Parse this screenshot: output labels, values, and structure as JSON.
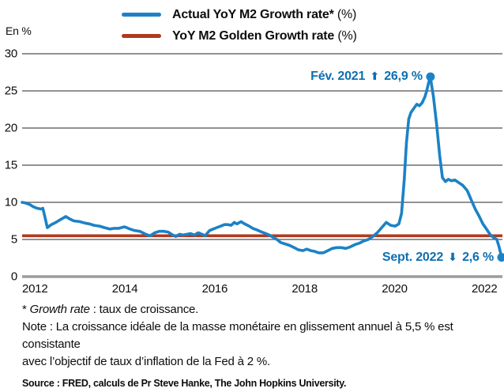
{
  "chart_data": {
    "type": "line",
    "unit_label": "En %",
    "xlim": [
      2012,
      2022.667
    ],
    "ylim": [
      0,
      30
    ],
    "x_ticks": [
      "2012",
      "2014",
      "2016",
      "2018",
      "2020",
      "2022"
    ],
    "x_tick_years": [
      2012,
      2014,
      2016,
      2018,
      2020,
      2022
    ],
    "y_ticks": [
      0,
      5,
      10,
      15,
      20,
      25,
      30
    ],
    "grid": "horizontal-only",
    "legend_position": "top-center",
    "colors": {
      "actual_line": "#1b82c6",
      "golden_line": "#b03a1e",
      "annotation_text": "#0e6fb2",
      "gridline": "#6e6e6e",
      "zero_line": "#9c9c9c"
    },
    "series": [
      {
        "name": "Actual YoY M2 Growth rate* (%)",
        "type": "line",
        "points": [
          [
            2012.0,
            10.0
          ],
          [
            2012.08,
            9.9
          ],
          [
            2012.17,
            9.7
          ],
          [
            2012.25,
            9.4
          ],
          [
            2012.33,
            9.2
          ],
          [
            2012.42,
            9.1
          ],
          [
            2012.46,
            9.2
          ],
          [
            2012.5,
            8.2
          ],
          [
            2012.56,
            6.6
          ],
          [
            2012.65,
            7.0
          ],
          [
            2012.75,
            7.3
          ],
          [
            2012.83,
            7.6
          ],
          [
            2012.92,
            7.9
          ],
          [
            2012.97,
            8.1
          ],
          [
            2013.05,
            7.8
          ],
          [
            2013.15,
            7.5
          ],
          [
            2013.28,
            7.4
          ],
          [
            2013.4,
            7.2
          ],
          [
            2013.5,
            7.1
          ],
          [
            2013.6,
            6.9
          ],
          [
            2013.72,
            6.8
          ],
          [
            2013.83,
            6.6
          ],
          [
            2013.95,
            6.4
          ],
          [
            2014.05,
            6.5
          ],
          [
            2014.15,
            6.5
          ],
          [
            2014.28,
            6.7
          ],
          [
            2014.4,
            6.4
          ],
          [
            2014.5,
            6.2
          ],
          [
            2014.62,
            6.1
          ],
          [
            2014.75,
            5.7
          ],
          [
            2014.85,
            5.5
          ],
          [
            2014.95,
            5.9
          ],
          [
            2015.05,
            6.1
          ],
          [
            2015.15,
            6.1
          ],
          [
            2015.25,
            6.0
          ],
          [
            2015.35,
            5.6
          ],
          [
            2015.42,
            5.4
          ],
          [
            2015.5,
            5.7
          ],
          [
            2015.58,
            5.6
          ],
          [
            2015.67,
            5.7
          ],
          [
            2015.75,
            5.8
          ],
          [
            2015.83,
            5.6
          ],
          [
            2015.92,
            5.9
          ],
          [
            2016.0,
            5.7
          ],
          [
            2016.07,
            5.5
          ],
          [
            2016.17,
            6.2
          ],
          [
            2016.25,
            6.4
          ],
          [
            2016.33,
            6.6
          ],
          [
            2016.42,
            6.8
          ],
          [
            2016.5,
            7.0
          ],
          [
            2016.58,
            7.0
          ],
          [
            2016.65,
            6.9
          ],
          [
            2016.72,
            7.3
          ],
          [
            2016.78,
            7.1
          ],
          [
            2016.87,
            7.4
          ],
          [
            2016.95,
            7.1
          ],
          [
            2017.05,
            6.8
          ],
          [
            2017.13,
            6.5
          ],
          [
            2017.22,
            6.3
          ],
          [
            2017.33,
            6.0
          ],
          [
            2017.42,
            5.8
          ],
          [
            2017.5,
            5.6
          ],
          [
            2017.58,
            5.3
          ],
          [
            2017.67,
            5.0
          ],
          [
            2017.75,
            4.6
          ],
          [
            2017.85,
            4.4
          ],
          [
            2017.95,
            4.2
          ],
          [
            2018.05,
            3.9
          ],
          [
            2018.15,
            3.6
          ],
          [
            2018.25,
            3.5
          ],
          [
            2018.33,
            3.7
          ],
          [
            2018.42,
            3.5
          ],
          [
            2018.5,
            3.4
          ],
          [
            2018.6,
            3.2
          ],
          [
            2018.7,
            3.2
          ],
          [
            2018.8,
            3.5
          ],
          [
            2018.9,
            3.8
          ],
          [
            2019.0,
            3.9
          ],
          [
            2019.1,
            3.9
          ],
          [
            2019.2,
            3.8
          ],
          [
            2019.3,
            4.0
          ],
          [
            2019.4,
            4.3
          ],
          [
            2019.5,
            4.5
          ],
          [
            2019.6,
            4.8
          ],
          [
            2019.7,
            5.0
          ],
          [
            2019.8,
            5.4
          ],
          [
            2019.9,
            5.9
          ],
          [
            2020.0,
            6.6
          ],
          [
            2020.1,
            7.3
          ],
          [
            2020.2,
            6.9
          ],
          [
            2020.3,
            6.8
          ],
          [
            2020.38,
            7.1
          ],
          [
            2020.44,
            8.5
          ],
          [
            2020.5,
            13.0
          ],
          [
            2020.55,
            18.0
          ],
          [
            2020.6,
            21.2
          ],
          [
            2020.65,
            22.1
          ],
          [
            2020.72,
            22.7
          ],
          [
            2020.78,
            23.2
          ],
          [
            2020.84,
            23.0
          ],
          [
            2020.9,
            23.4
          ],
          [
            2020.96,
            24.2
          ],
          [
            2021.0,
            25.0
          ],
          [
            2021.04,
            26.0
          ],
          [
            2021.08,
            26.9
          ],
          [
            2021.15,
            24.2
          ],
          [
            2021.22,
            20.5
          ],
          [
            2021.29,
            16.3
          ],
          [
            2021.35,
            13.3
          ],
          [
            2021.42,
            12.8
          ],
          [
            2021.48,
            13.1
          ],
          [
            2021.55,
            12.9
          ],
          [
            2021.63,
            13.0
          ],
          [
            2021.7,
            12.7
          ],
          [
            2021.8,
            12.3
          ],
          [
            2021.9,
            11.6
          ],
          [
            2022.0,
            10.2
          ],
          [
            2022.08,
            9.1
          ],
          [
            2022.17,
            8.1
          ],
          [
            2022.25,
            7.1
          ],
          [
            2022.33,
            6.4
          ],
          [
            2022.42,
            5.6
          ],
          [
            2022.5,
            5.2
          ],
          [
            2022.56,
            5.0
          ],
          [
            2022.61,
            4.0
          ],
          [
            2022.667,
            2.6
          ]
        ]
      },
      {
        "name": "YoY M2 Golden Growth rate (%)",
        "type": "constant-line",
        "value": 5.5
      }
    ],
    "annotations": [
      {
        "label": "Fév. 2021",
        "arrow": "up",
        "arrow_glyph": "⬆",
        "value_label": "26,9 %",
        "x": 2021.083,
        "y": 26.9
      },
      {
        "label": "Sept. 2022",
        "arrow": "down",
        "arrow_glyph": "⬇",
        "value_label": "2,6 %",
        "x": 2022.667,
        "y": 2.6
      }
    ]
  },
  "legend": {
    "items": [
      {
        "label": "Actual YoY M2 Growth rate*",
        "suffix": " (%)",
        "color": "#1b82c6"
      },
      {
        "label": "YoY M2 Golden Growth rate",
        "suffix": " (%)",
        "color": "#b03a1e"
      }
    ]
  },
  "footnotes": {
    "asterisk_prefix": "* ",
    "asterisk_italic": "Growth rate",
    "asterisk_rest": " : taux de croissance.",
    "note_line1": "Note : La croissance idéale de la masse monétaire en glissement annuel à 5,5 % est consistante",
    "note_line2": "avec l’objectif de taux d’inflation de la Fed à 2 %.",
    "source": "Source : FRED, calculs de Pr Steve Hanke, The John Hopkins University."
  }
}
